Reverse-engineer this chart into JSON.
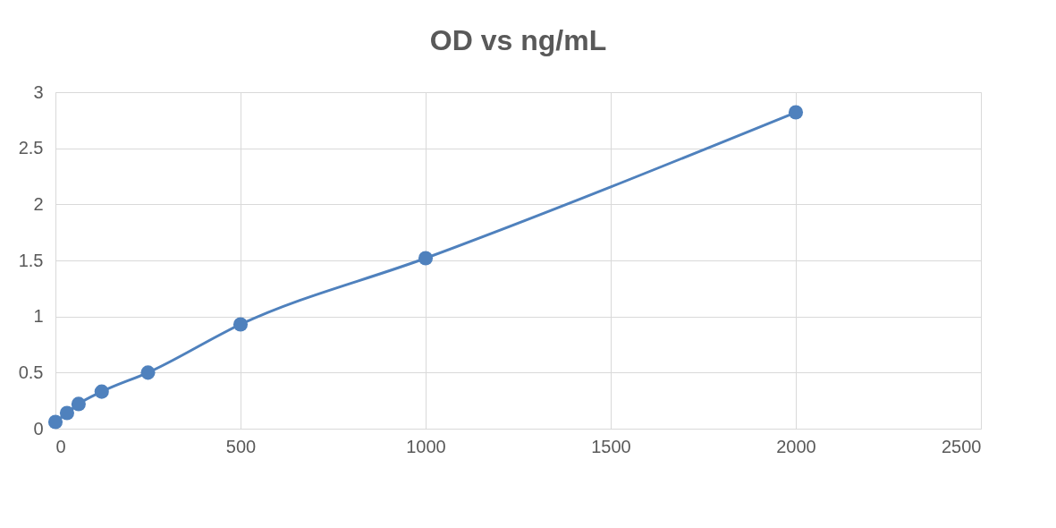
{
  "chart_data": {
    "type": "line",
    "title": "OD vs ng/mL",
    "x": [
      0,
      31.25,
      62.5,
      125,
      250,
      500,
      1000,
      2000
    ],
    "series": [
      {
        "color": "#4f81bd",
        "values": [
          0.06,
          0.14,
          0.22,
          0.33,
          0.5,
          0.93,
          1.52,
          2.82
        ]
      }
    ],
    "xlim": [
      0,
      2500
    ],
    "xticks": [
      0,
      500,
      1000,
      1500,
      2000,
      2500
    ],
    "ylim": [
      0,
      3
    ],
    "yticks": [
      0,
      0.5,
      1,
      1.5,
      2,
      2.5,
      3
    ],
    "grid": true,
    "marker": "circle",
    "line_style": "solid"
  }
}
